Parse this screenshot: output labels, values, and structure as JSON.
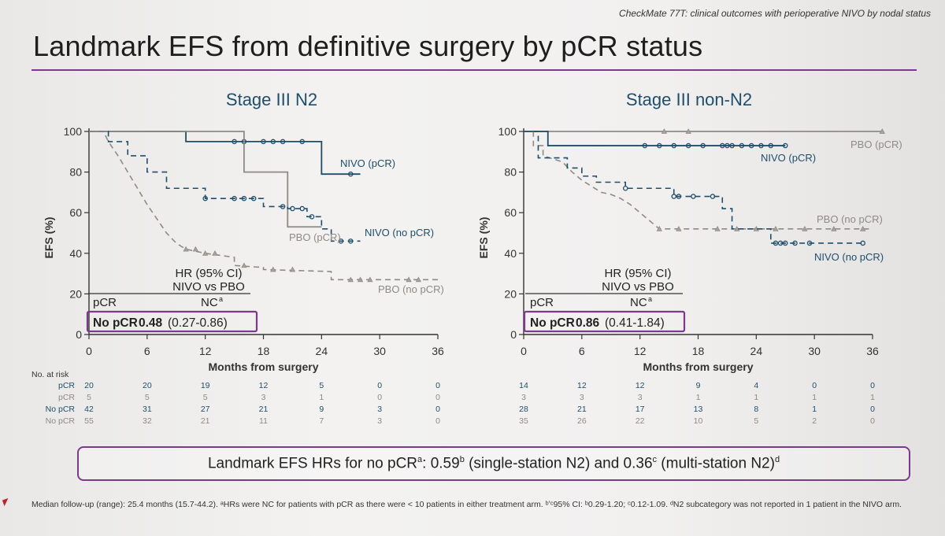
{
  "header": {
    "text": "CheckMate 77T: clinical outcomes with perioperative NIVO by nodal status",
    "title": "Landmark EFS from definitive surgery by pCR status"
  },
  "colors": {
    "nivo": "#1f4e6b",
    "pbo": "#8f8a85",
    "accent": "#7b3a8c"
  },
  "chart_data": [
    {
      "type": "line",
      "title": "Stage III N2",
      "xlabel": "Months from surgery",
      "ylabel": "EFS (%)",
      "xlim": [
        0,
        36
      ],
      "ylim": [
        0,
        100
      ],
      "xticks": [
        "0",
        "6",
        "12",
        "18",
        "24",
        "30",
        "36"
      ],
      "yticks": [
        "0",
        "20",
        "40",
        "60",
        "80",
        "100"
      ],
      "series": [
        {
          "name": "NIVO (pCR)",
          "style": "solid",
          "color": "#1f4e6b",
          "x": [
            0,
            10,
            10,
            24,
            24,
            28
          ],
          "y": [
            100,
            100,
            95,
            95,
            79,
            79
          ],
          "censor_x": [
            15,
            16,
            18,
            19,
            20,
            22,
            27
          ]
        },
        {
          "name": "PBO (pCR)",
          "style": "solid",
          "color": "#8f8a85",
          "x": [
            0,
            16,
            16,
            20.5,
            20.5,
            24
          ],
          "y": [
            100,
            100,
            80,
            80,
            53,
            53
          ],
          "censor_x": []
        },
        {
          "name": "NIVO (no pCR)",
          "style": "dashed",
          "color": "#1f4e6b",
          "x": [
            0,
            2,
            2,
            4,
            4,
            6,
            6,
            8,
            8,
            12,
            12,
            18,
            18,
            20.5,
            20.5,
            22.5,
            22.5,
            24,
            24,
            25,
            25,
            28
          ],
          "y": [
            100,
            100,
            95,
            95,
            88,
            88,
            80,
            80,
            72,
            72,
            67,
            67,
            63,
            63,
            62,
            62,
            58,
            58,
            52,
            52,
            46,
            46
          ],
          "censor_x": [
            12,
            15,
            16,
            17,
            20,
            21,
            22,
            23,
            26,
            27
          ]
        },
        {
          "name": "PBO (no pCR)",
          "style": "dashed",
          "color": "#8f8a85",
          "x": [
            0,
            1.5,
            2,
            3,
            4,
            5,
            6,
            7,
            8,
            9,
            10,
            12,
            15,
            15,
            18,
            18,
            25,
            25,
            36
          ],
          "y": [
            100,
            100,
            95,
            88,
            80,
            72,
            64,
            57,
            50,
            45,
            42,
            40,
            38,
            34,
            33,
            32,
            31,
            27,
            27
          ],
          "censor_x": [
            10,
            11,
            12,
            13,
            16,
            19,
            21,
            27,
            28,
            29,
            33,
            34
          ]
        }
      ],
      "hr": {
        "heading": "HR (95% CI)",
        "comparison": "NIVO vs PBO",
        "pcr_label": "pCR",
        "pcr_value": "NC",
        "pcr_sup": "a",
        "nopcr_label": "No pCR",
        "nopcr_value": "0.48",
        "nopcr_ci": "(0.27-0.86)"
      },
      "risk_table": {
        "header": "No. at risk",
        "rows": [
          {
            "label": "pCR",
            "group": "NIVO",
            "values": [
              "20",
              "20",
              "19",
              "12",
              "5",
              "0",
              "0"
            ]
          },
          {
            "label": "pCR",
            "group": "PBO",
            "values": [
              "5",
              "5",
              "5",
              "3",
              "1",
              "0",
              "0"
            ]
          },
          {
            "label": "No pCR",
            "group": "NIVO",
            "values": [
              "42",
              "31",
              "27",
              "21",
              "9",
              "3",
              "0"
            ]
          },
          {
            "label": "No pCR",
            "group": "PBO",
            "values": [
              "55",
              "32",
              "21",
              "11",
              "7",
              "3",
              "0"
            ]
          }
        ]
      }
    },
    {
      "type": "line",
      "title": "Stage III non-N2",
      "xlabel": "Months from surgery",
      "ylabel": "EFS (%)",
      "xlim": [
        0,
        36
      ],
      "ylim": [
        0,
        100
      ],
      "xticks": [
        "0",
        "6",
        "12",
        "18",
        "24",
        "30",
        "36"
      ],
      "yticks": [
        "0",
        "20",
        "40",
        "60",
        "80",
        "100"
      ],
      "series": [
        {
          "name": "PBO (pCR)",
          "style": "solid",
          "color": "#8f8a85",
          "x": [
            0,
            37
          ],
          "y": [
            100,
            100
          ],
          "censor_x": [
            14.5,
            17,
            37
          ]
        },
        {
          "name": "NIVO (pCR)",
          "style": "solid",
          "color": "#1f4e6b",
          "x": [
            0,
            2.5,
            2.5,
            27
          ],
          "y": [
            100,
            100,
            93,
            93
          ],
          "censor_x": [
            12.5,
            14,
            15.5,
            17,
            18.5,
            20.5,
            21,
            21.5,
            22.5,
            23.5,
            24.5,
            25.5,
            27
          ]
        },
        {
          "name": "PBO (no pCR)",
          "style": "dashed",
          "color": "#8f8a85",
          "x": [
            0,
            1,
            1,
            2,
            2,
            4,
            5,
            6,
            7,
            8,
            9,
            10,
            11,
            12,
            13,
            14,
            15,
            16,
            36
          ],
          "y": [
            100,
            100,
            93,
            93,
            88,
            85,
            80,
            76,
            73,
            70,
            69,
            67,
            64,
            60,
            56,
            52,
            52,
            52,
            52
          ],
          "censor_x": [
            14,
            16,
            20,
            22,
            24,
            26,
            29,
            32,
            35
          ]
        },
        {
          "name": "NIVO (no pCR)",
          "style": "dashed",
          "color": "#1f4e6b",
          "x": [
            0,
            1.5,
            1.5,
            4.5,
            4.5,
            6,
            6,
            7.5,
            7.5,
            10.5,
            10.5,
            15.5,
            15.5,
            20.5,
            20.5,
            21.5,
            21.5,
            25.5,
            25.5,
            35
          ],
          "y": [
            100,
            100,
            87,
            87,
            82,
            82,
            78,
            78,
            75,
            75,
            72,
            72,
            68,
            68,
            62,
            62,
            52,
            52,
            45,
            45
          ],
          "censor_x": [
            10.5,
            15.5,
            16,
            17.5,
            19.5,
            26,
            26.5,
            27,
            28,
            29.5,
            35
          ]
        }
      ],
      "hr": {
        "heading": "HR (95% CI)",
        "comparison": "NIVO vs PBO",
        "pcr_label": "pCR",
        "pcr_value": "NC",
        "pcr_sup": "a",
        "nopcr_label": "No pCR",
        "nopcr_value": "0.86",
        "nopcr_ci": "(0.41-1.84)"
      },
      "risk_table": {
        "header": "",
        "rows": [
          {
            "label": "",
            "group": "NIVO",
            "values": [
              "14",
              "12",
              "12",
              "9",
              "4",
              "0",
              "0"
            ]
          },
          {
            "label": "",
            "group": "PBO",
            "values": [
              "3",
              "3",
              "3",
              "1",
              "1",
              "1",
              "1"
            ]
          },
          {
            "label": "",
            "group": "NIVO",
            "values": [
              "28",
              "21",
              "17",
              "13",
              "8",
              "1",
              "0"
            ]
          },
          {
            "label": "",
            "group": "PBO",
            "values": [
              "35",
              "26",
              "22",
              "10",
              "5",
              "2",
              "0"
            ]
          }
        ]
      }
    }
  ],
  "callout": {
    "prefix": "Landmark EFS HRs for no pCR",
    "prefix_sup": "a",
    "mid1": ": 0.59",
    "sup_b": "b",
    "mid2": " (single-station N2) and 0.36",
    "sup_c": "c",
    "mid3": " (multi-station N2)",
    "sup_d": "d"
  },
  "footer": {
    "text": "Median follow-up (range): 25.4 months (15.7-44.2). ᵃHRs were NC for patients with pCR as there were < 10 patients in either treatment arm. ᵇʼᶜ95% CI: ᵇ0.29-1.20; ᶜ0.12-1.09. ᵈN2 subcategory was not reported in 1 patient in the NIVO arm."
  }
}
